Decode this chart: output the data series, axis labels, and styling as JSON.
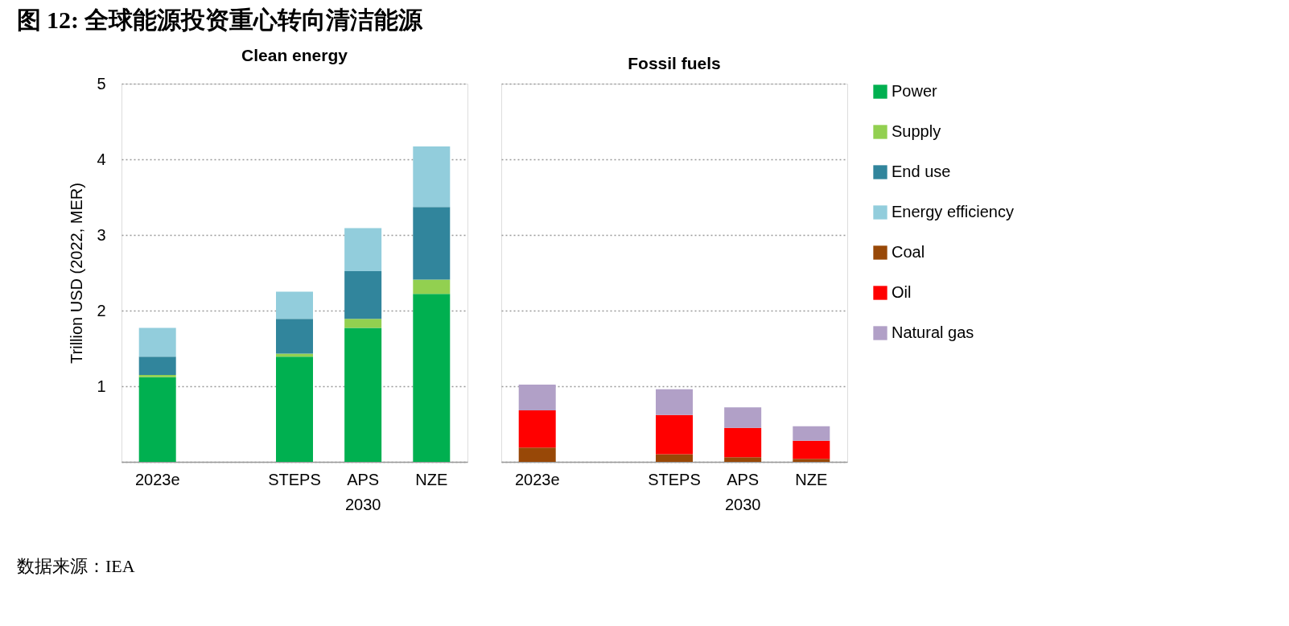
{
  "chart_data": [
    {
      "type": "bar",
      "stacked": true,
      "title": "图 12: 全球能源投资重心转向清洁能源",
      "subtitle": "Clean energy",
      "ylabel": "Trillion USD (2022, MER)",
      "categories": [
        "2023e",
        null,
        "STEPS",
        "APS",
        "NZE"
      ],
      "series": [
        {
          "name": "Power",
          "color": "#00b050",
          "values": [
            1.12,
            null,
            1.39,
            1.77,
            2.22
          ]
        },
        {
          "name": "Supply",
          "color": "#92d050",
          "values": [
            0.03,
            null,
            0.04,
            0.12,
            0.19
          ]
        },
        {
          "name": "End use",
          "color": "#31859c",
          "values": [
            0.24,
            null,
            0.46,
            0.63,
            0.96
          ]
        },
        {
          "name": "Energy efficiency",
          "color": "#92cddc",
          "values": [
            0.38,
            null,
            0.36,
            0.57,
            0.8
          ]
        }
      ],
      "ylim": [
        0,
        5
      ],
      "yticks": [
        {
          "value": 0,
          "label": null
        },
        1,
        2,
        3,
        4,
        5
      ],
      "grid": "y",
      "legend": "right",
      "annotations": [
        "2030",
        "数据来源：IEA"
      ]
    },
    {
      "type": "bar",
      "stacked": true,
      "title": "Fossil fuels",
      "categories": [
        "2023e",
        null,
        "STEPS",
        "APS",
        "NZE"
      ],
      "series": [
        {
          "name": "Coal",
          "color": "#984807",
          "values": [
            0.19,
            null,
            0.1,
            0.06,
            0.04
          ]
        },
        {
          "name": "Oil",
          "color": "#ff0000",
          "values": [
            0.49,
            null,
            0.52,
            0.39,
            0.24
          ]
        },
        {
          "name": "Natural gas",
          "color": "#b1a0c7",
          "values": [
            0.34,
            null,
            0.34,
            0.27,
            0.19
          ]
        }
      ],
      "ylim": [
        0,
        5
      ],
      "yticks": [
        {
          "value": 0,
          "label": null
        },
        1,
        2,
        3,
        4,
        5
      ],
      "grid": "y",
      "legend": "right",
      "tick_labels": "x",
      "annotations": [
        "2030"
      ]
    }
  ]
}
